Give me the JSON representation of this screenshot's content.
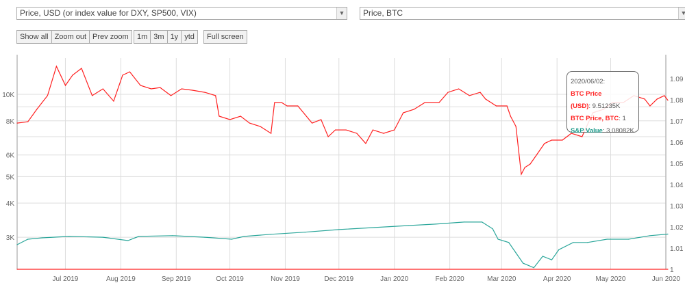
{
  "selectors": {
    "left_axis": "Price, USD (or index value for DXY, SP500, VIX)",
    "right_axis": "Price, BTC"
  },
  "toolbar": {
    "show_all": "Show all",
    "zoom_out": "Zoom out",
    "prev_zoom": "Prev zoom",
    "r1m": "1m",
    "r3m": "3m",
    "r1y": "1y",
    "ytd": "ytd",
    "full_screen": "Full screen"
  },
  "tooltip": {
    "date": "2020/06/02:",
    "btc_label_1": "BTC Price",
    "btc_label_2": "(USD)",
    "btc_value": "9.51235K",
    "btcbtc_label": "BTC Price, BTC",
    "btcbtc_value": "1",
    "sp_label": "S&P Value",
    "sp_value": "3.08082K"
  },
  "colors": {
    "btc": "#ff2020",
    "sp": "#2aa69a",
    "grid": "#dddddd"
  },
  "chart_data": {
    "type": "line",
    "x_range": [
      "2019-06-04",
      "2020-06-02"
    ],
    "x_ticks": [
      {
        "date": "2019-07-01",
        "label": "Jul 2019"
      },
      {
        "date": "2019-08-01",
        "label": "Aug 2019"
      },
      {
        "date": "2019-09-01",
        "label": "Sep 2019"
      },
      {
        "date": "2019-10-01",
        "label": "Oct 2019"
      },
      {
        "date": "2019-11-01",
        "label": "Nov 2019"
      },
      {
        "date": "2019-12-01",
        "label": "Dec 2019"
      },
      {
        "date": "2020-01-01",
        "label": "Jan 2020"
      },
      {
        "date": "2020-02-01",
        "label": "Feb 2020"
      },
      {
        "date": "2020-03-01",
        "label": "Mar 2020"
      },
      {
        "date": "2020-04-01",
        "label": "Apr 2020"
      },
      {
        "date": "2020-05-01",
        "label": "May 2020"
      },
      {
        "date": "2020-06-01",
        "label": "Jun 2020"
      }
    ],
    "left_axis": {
      "scale": "log",
      "range": [
        2290,
        13570
      ],
      "ticks": [
        {
          "value": 3000,
          "label": "3K"
        },
        {
          "value": 4000,
          "label": "4K"
        },
        {
          "value": 5000,
          "label": "5K"
        },
        {
          "value": 6000,
          "label": "6K"
        },
        {
          "value": 7000,
          "label": ""
        },
        {
          "value": 8000,
          "label": "8K"
        },
        {
          "value": 9000,
          "label": ""
        },
        {
          "value": 10000,
          "label": "10K"
        }
      ]
    },
    "right_axis": {
      "scale": "linear",
      "range": [
        1,
        1.0997
      ],
      "ticks": [
        {
          "value": 1,
          "label": "1"
        },
        {
          "value": 1.01,
          "label": "1.01"
        },
        {
          "value": 1.02,
          "label": "1.02"
        },
        {
          "value": 1.03,
          "label": "1.03"
        },
        {
          "value": 1.04,
          "label": "1.04"
        },
        {
          "value": 1.05,
          "label": "1.05"
        },
        {
          "value": 1.06,
          "label": "1.06"
        },
        {
          "value": 1.07,
          "label": "1.07"
        },
        {
          "value": 1.08,
          "label": "1.08"
        },
        {
          "value": 1.09,
          "label": "1.09"
        }
      ]
    },
    "series": [
      {
        "name": "BTC Price (USD)",
        "axis": "left",
        "color": "#ff2020",
        "points": [
          [
            "2019-06-04",
            7850
          ],
          [
            "2019-06-10",
            7940
          ],
          [
            "2019-06-15",
            8810
          ],
          [
            "2019-06-21",
            9890
          ],
          [
            "2019-06-26",
            12660
          ],
          [
            "2019-07-01",
            10780
          ],
          [
            "2019-07-05",
            11750
          ],
          [
            "2019-07-10",
            12450
          ],
          [
            "2019-07-16",
            9890
          ],
          [
            "2019-07-22",
            10470
          ],
          [
            "2019-07-28",
            9440
          ],
          [
            "2019-08-02",
            11750
          ],
          [
            "2019-08-06",
            12090
          ],
          [
            "2019-08-12",
            10780
          ],
          [
            "2019-08-18",
            10470
          ],
          [
            "2019-08-23",
            10590
          ],
          [
            "2019-08-29",
            9890
          ],
          [
            "2019-09-04",
            10470
          ],
          [
            "2019-09-10",
            10350
          ],
          [
            "2019-09-17",
            10170
          ],
          [
            "2019-09-23",
            9890
          ],
          [
            "2019-09-25",
            8320
          ],
          [
            "2019-10-01",
            8080
          ],
          [
            "2019-10-07",
            8320
          ],
          [
            "2019-10-12",
            7850
          ],
          [
            "2019-10-18",
            7630
          ],
          [
            "2019-10-24",
            7200
          ],
          [
            "2019-10-26",
            9330
          ],
          [
            "2019-10-30",
            9330
          ],
          [
            "2019-11-02",
            9070
          ],
          [
            "2019-11-08",
            9070
          ],
          [
            "2019-11-16",
            7850
          ],
          [
            "2019-11-21",
            8080
          ],
          [
            "2019-11-25",
            7000
          ],
          [
            "2019-11-29",
            7410
          ],
          [
            "2019-12-05",
            7410
          ],
          [
            "2019-12-11",
            7200
          ],
          [
            "2019-12-16",
            6610
          ],
          [
            "2019-12-20",
            7410
          ],
          [
            "2019-12-26",
            7200
          ],
          [
            "2020-01-01",
            7410
          ],
          [
            "2020-01-06",
            8560
          ],
          [
            "2020-01-12",
            8810
          ],
          [
            "2020-01-18",
            9330
          ],
          [
            "2020-01-26",
            9330
          ],
          [
            "2020-01-31",
            10170
          ],
          [
            "2020-02-06",
            10470
          ],
          [
            "2020-02-12",
            9890
          ],
          [
            "2020-02-18",
            10170
          ],
          [
            "2020-02-21",
            9610
          ],
          [
            "2020-02-27",
            9070
          ],
          [
            "2020-03-04",
            9070
          ],
          [
            "2020-03-06",
            8320
          ],
          [
            "2020-03-09",
            7630
          ],
          [
            "2020-03-12",
            5100
          ],
          [
            "2020-03-14",
            5400
          ],
          [
            "2020-03-17",
            5560
          ],
          [
            "2020-03-21",
            6060
          ],
          [
            "2020-03-25",
            6610
          ],
          [
            "2020-03-29",
            6800
          ],
          [
            "2020-04-04",
            6800
          ],
          [
            "2020-04-09",
            7200
          ],
          [
            "2020-04-15",
            7000
          ],
          [
            "2020-04-21",
            8560
          ],
          [
            "2020-04-27",
            8810
          ],
          [
            "2020-05-02",
            9330
          ],
          [
            "2020-05-08",
            9330
          ],
          [
            "2020-05-14",
            9890
          ],
          [
            "2020-05-20",
            9610
          ],
          [
            "2020-05-23",
            9070
          ],
          [
            "2020-05-27",
            9610
          ],
          [
            "2020-05-31",
            9890
          ],
          [
            "2020-06-02",
            9512
          ]
        ]
      },
      {
        "name": "S&P Value",
        "axis": "left",
        "color": "#2aa69a",
        "points": [
          [
            "2019-06-04",
            2818
          ],
          [
            "2019-06-10",
            2950
          ],
          [
            "2019-06-18",
            2985
          ],
          [
            "2019-07-03",
            3020
          ],
          [
            "2019-07-22",
            3000
          ],
          [
            "2019-08-05",
            2917
          ],
          [
            "2019-08-11",
            3020
          ],
          [
            "2019-08-30",
            3040
          ],
          [
            "2019-09-17",
            3000
          ],
          [
            "2019-10-02",
            2950
          ],
          [
            "2019-10-09",
            3020
          ],
          [
            "2019-10-24",
            3075
          ],
          [
            "2019-11-12",
            3130
          ],
          [
            "2019-12-01",
            3200
          ],
          [
            "2019-12-21",
            3255
          ],
          [
            "2020-01-09",
            3310
          ],
          [
            "2020-01-24",
            3350
          ],
          [
            "2020-02-09",
            3410
          ],
          [
            "2020-02-19",
            3410
          ],
          [
            "2020-02-25",
            3220
          ],
          [
            "2020-02-28",
            2950
          ],
          [
            "2020-03-05",
            2870
          ],
          [
            "2020-03-09",
            2630
          ],
          [
            "2020-03-13",
            2410
          ],
          [
            "2020-03-19",
            2320
          ],
          [
            "2020-03-24",
            2555
          ],
          [
            "2020-03-29",
            2480
          ],
          [
            "2020-04-02",
            2700
          ],
          [
            "2020-04-10",
            2870
          ],
          [
            "2020-04-18",
            2870
          ],
          [
            "2020-04-29",
            2950
          ],
          [
            "2020-05-11",
            2950
          ],
          [
            "2020-05-23",
            3040
          ],
          [
            "2020-06-02",
            3080
          ]
        ]
      },
      {
        "name": "BTC Price, BTC",
        "axis": "right",
        "color": "#ff2020",
        "points": [
          [
            "2019-06-04",
            1
          ],
          [
            "2020-06-02",
            1
          ]
        ]
      }
    ]
  }
}
